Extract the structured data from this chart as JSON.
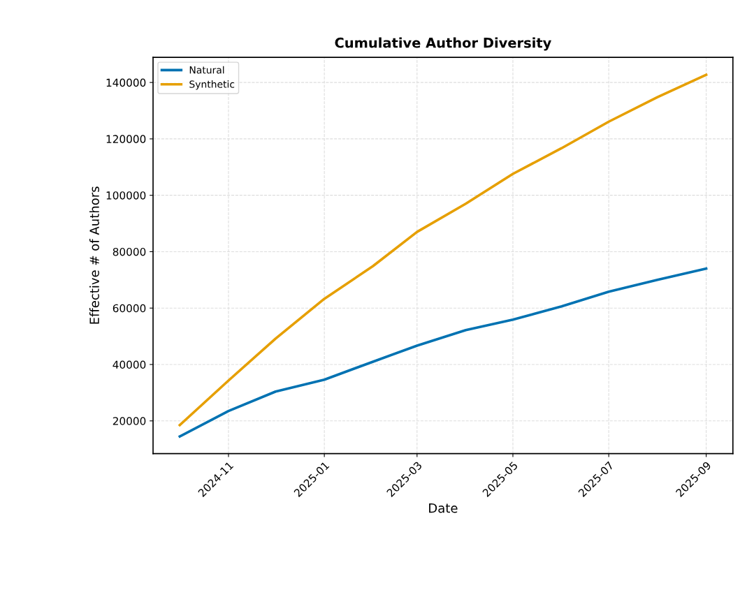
{
  "chart_data": {
    "type": "line",
    "title": "Cumulative Author Diversity",
    "xlabel": "Date",
    "ylabel": "Effective # of Authors",
    "x": [
      "2024-10",
      "2024-11",
      "2024-12",
      "2025-01",
      "2025-02",
      "2025-03",
      "2025-04",
      "2025-05",
      "2025-06",
      "2025-07",
      "2025-08",
      "2025-09"
    ],
    "series": [
      {
        "name": "Natural",
        "color": "#0072b2",
        "values": [
          14500,
          23500,
          30400,
          34600,
          41000,
          46700,
          52200,
          55900,
          60600,
          65800,
          70000,
          74000
        ]
      },
      {
        "name": "Synthetic",
        "color": "#e69f00",
        "values": [
          18500,
          34300,
          49200,
          63300,
          74900,
          87000,
          97000,
          107600,
          116700,
          126100,
          134800,
          142700
        ]
      }
    ],
    "xlim": [
      "2024-09-14",
      "2025-09-18"
    ],
    "xticks": [
      "2024-11",
      "2025-01",
      "2025-03",
      "2025-05",
      "2025-07",
      "2025-09"
    ],
    "ylim": [
      8400,
      148900
    ],
    "yticks": [
      20000,
      40000,
      60000,
      80000,
      100000,
      120000,
      140000
    ],
    "grid": true,
    "legend": "top left",
    "line_style": "solid",
    "marker": "none"
  }
}
